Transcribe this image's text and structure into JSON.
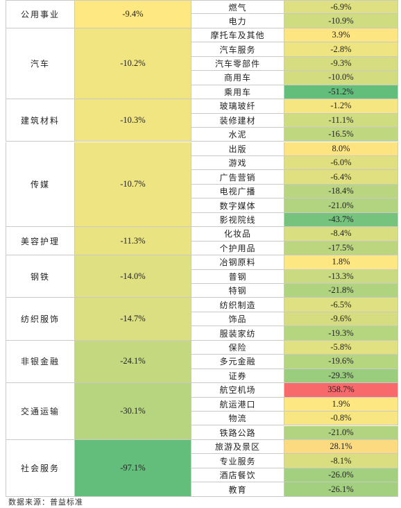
{
  "chart_data": {
    "type": "table",
    "colors": {
      "strong_negative": "#63be7b",
      "neutral": "#fde882",
      "positive": "#f8696b"
    },
    "groups": [
      {
        "industry": "公用事业",
        "value": "-9.4%",
        "v": -9.4,
        "subs": [
          {
            "name": "燃气",
            "value": "-6.9%",
            "v": -6.9
          },
          {
            "name": "电力",
            "value": "-10.9%",
            "v": -10.9
          }
        ]
      },
      {
        "industry": "汽车",
        "value": "-10.2%",
        "v": -10.2,
        "subs": [
          {
            "name": "摩托车及其他",
            "value": "3.9%",
            "v": 3.9
          },
          {
            "name": "汽车服务",
            "value": "-2.8%",
            "v": -2.8
          },
          {
            "name": "汽车零部件",
            "value": "-9.3%",
            "v": -9.3
          },
          {
            "name": "商用车",
            "value": "-10.0%",
            "v": -10.0
          },
          {
            "name": "乘用车",
            "value": "-51.2%",
            "v": -51.2
          }
        ]
      },
      {
        "industry": "建筑材料",
        "value": "-10.3%",
        "v": -10.3,
        "subs": [
          {
            "name": "玻璃玻纤",
            "value": "-1.2%",
            "v": -1.2
          },
          {
            "name": "装修建材",
            "value": "-11.1%",
            "v": -11.1
          },
          {
            "name": "水泥",
            "value": "-16.5%",
            "v": -16.5
          }
        ]
      },
      {
        "industry": "传媒",
        "value": "-10.7%",
        "v": -10.7,
        "subs": [
          {
            "name": "出版",
            "value": "8.0%",
            "v": 8.0
          },
          {
            "name": "游戏",
            "value": "-6.0%",
            "v": -6.0
          },
          {
            "name": "广告营销",
            "value": "-6.4%",
            "v": -6.4
          },
          {
            "name": "电视广播",
            "value": "-18.4%",
            "v": -18.4
          },
          {
            "name": "数字媒体",
            "value": "-21.0%",
            "v": -21.0
          },
          {
            "name": "影视院线",
            "value": "-43.7%",
            "v": -43.7
          }
        ]
      },
      {
        "industry": "美容护理",
        "value": "-11.3%",
        "v": -11.3,
        "subs": [
          {
            "name": "化妆品",
            "value": "-8.4%",
            "v": -8.4
          },
          {
            "name": "个护用品",
            "value": "-17.5%",
            "v": -17.5
          }
        ]
      },
      {
        "industry": "钢铁",
        "value": "-14.0%",
        "v": -14.0,
        "subs": [
          {
            "name": "冶钢原料",
            "value": "1.8%",
            "v": 1.8
          },
          {
            "name": "普钢",
            "value": "-13.3%",
            "v": -13.3
          },
          {
            "name": "特钢",
            "value": "-21.8%",
            "v": -21.8
          }
        ]
      },
      {
        "industry": "纺织服饰",
        "value": "-14.7%",
        "v": -14.7,
        "subs": [
          {
            "name": "纺织制造",
            "value": "-6.5%",
            "v": -6.5
          },
          {
            "name": "饰品",
            "value": "-9.6%",
            "v": -9.6
          },
          {
            "name": "服装家纺",
            "value": "-19.3%",
            "v": -19.3
          }
        ]
      },
      {
        "industry": "非银金融",
        "value": "-24.1%",
        "v": -24.1,
        "subs": [
          {
            "name": "保险",
            "value": "-5.8%",
            "v": -5.8
          },
          {
            "name": "多元金融",
            "value": "-19.6%",
            "v": -19.6
          },
          {
            "name": "证券",
            "value": "-29.3%",
            "v": -29.3
          }
        ]
      },
      {
        "industry": "交通运输",
        "value": "-30.1%",
        "v": -30.1,
        "subs": [
          {
            "name": "航空机场",
            "value": "358.7%",
            "v": 358.7
          },
          {
            "name": "航运港口",
            "value": "1.9%",
            "v": 1.9
          },
          {
            "name": "物流",
            "value": "-0.8%",
            "v": -0.8
          },
          {
            "name": "铁路公路",
            "value": "-21.0%",
            "v": -21.0
          }
        ]
      },
      {
        "industry": "社会服务",
        "value": "-97.1%",
        "v": -97.1,
        "subs": [
          {
            "name": "旅游及景区",
            "value": "28.1%",
            "v": 28.1
          },
          {
            "name": "专业服务",
            "value": "-8.1%",
            "v": -8.1
          },
          {
            "name": "酒店餐饮",
            "value": "-26.0%",
            "v": -26.0
          },
          {
            "name": "教育",
            "value": "-26.1%",
            "v": -26.1
          }
        ]
      }
    ]
  },
  "source": "数据来源：普益标准"
}
